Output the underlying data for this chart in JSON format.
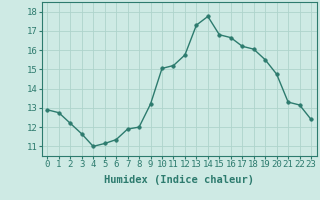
{
  "x": [
    0,
    1,
    2,
    3,
    4,
    5,
    6,
    7,
    8,
    9,
    10,
    11,
    12,
    13,
    14,
    15,
    16,
    17,
    18,
    19,
    20,
    21,
    22,
    23
  ],
  "y": [
    12.9,
    12.75,
    12.2,
    11.65,
    11.0,
    11.15,
    11.35,
    11.9,
    12.0,
    13.2,
    15.05,
    15.2,
    15.75,
    17.3,
    17.75,
    16.8,
    16.65,
    16.2,
    16.05,
    15.5,
    14.75,
    13.3,
    13.15,
    12.4
  ],
  "line_color": "#2d7b6e",
  "marker": "o",
  "marker_size": 2.5,
  "linewidth": 1.0,
  "xlabel": "Humidex (Indice chaleur)",
  "xlim": [
    -0.5,
    23.5
  ],
  "ylim": [
    10.5,
    18.5
  ],
  "yticks": [
    11,
    12,
    13,
    14,
    15,
    16,
    17,
    18
  ],
  "xticks": [
    0,
    1,
    2,
    3,
    4,
    5,
    6,
    7,
    8,
    9,
    10,
    11,
    12,
    13,
    14,
    15,
    16,
    17,
    18,
    19,
    20,
    21,
    22,
    23
  ],
  "xtick_labels": [
    "0",
    "1",
    "2",
    "3",
    "4",
    "5",
    "6",
    "7",
    "8",
    "9",
    "10",
    "11",
    "12",
    "13",
    "14",
    "15",
    "16",
    "17",
    "18",
    "19",
    "20",
    "21",
    "22",
    "23"
  ],
  "grid_color": "#aed4cc",
  "bg_color": "#ceeae4",
  "text_color": "#2d7b6e",
  "xlabel_fontsize": 7.5,
  "tick_fontsize": 6.5
}
